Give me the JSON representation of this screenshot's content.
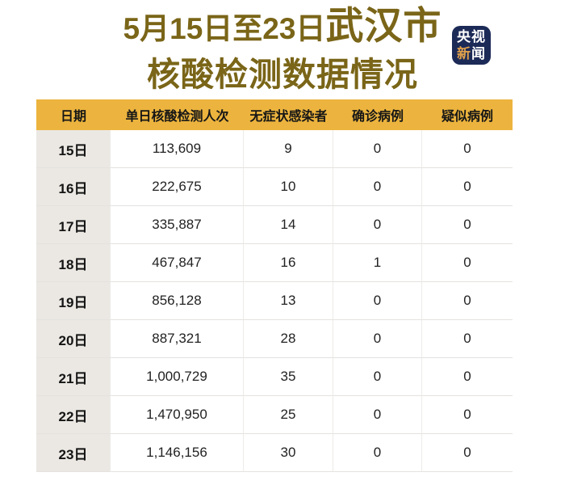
{
  "title": {
    "line1_prefix": "5月15日至23日",
    "line1_emphasis": "武汉市",
    "line2": "核酸检测数据情况"
  },
  "badge": {
    "name": "央视新闻",
    "line1": "央视",
    "line2_char1": "新",
    "line2_char2": "闻"
  },
  "colors": {
    "title_text": "#7a6518",
    "header_bg": "#ecb43e",
    "date_column_bg": "#ebe8e3",
    "badge_bg": "#1c2a57",
    "badge_accent": "#dd9f4b",
    "page_bg": "#ffffff"
  },
  "table": {
    "columns": [
      "日期",
      "单日核酸检测人次",
      "无症状感染者",
      "确诊病例",
      "疑似病例"
    ],
    "rows": [
      {
        "date": "15日",
        "tests": "113,609",
        "asymptomatic": "9",
        "confirmed": "0",
        "suspected": "0"
      },
      {
        "date": "16日",
        "tests": "222,675",
        "asymptomatic": "10",
        "confirmed": "0",
        "suspected": "0"
      },
      {
        "date": "17日",
        "tests": "335,887",
        "asymptomatic": "14",
        "confirmed": "0",
        "suspected": "0"
      },
      {
        "date": "18日",
        "tests": "467,847",
        "asymptomatic": "16",
        "confirmed": "1",
        "suspected": "0"
      },
      {
        "date": "19日",
        "tests": "856,128",
        "asymptomatic": "13",
        "confirmed": "0",
        "suspected": "0"
      },
      {
        "date": "20日",
        "tests": "887,321",
        "asymptomatic": "28",
        "confirmed": "0",
        "suspected": "0"
      },
      {
        "date": "21日",
        "tests": "1,000,729",
        "asymptomatic": "35",
        "confirmed": "0",
        "suspected": "0"
      },
      {
        "date": "22日",
        "tests": "1,470,950",
        "asymptomatic": "25",
        "confirmed": "0",
        "suspected": "0"
      },
      {
        "date": "23日",
        "tests": "1,146,156",
        "asymptomatic": "30",
        "confirmed": "0",
        "suspected": "0"
      }
    ]
  },
  "chart_data": {
    "type": "table",
    "title": "5月15日至23日武汉市核酸检测数据情况",
    "source_badge": "央视新闻",
    "columns": [
      "日期",
      "单日核酸检测人次",
      "无症状感染者",
      "确诊病例",
      "疑似病例"
    ],
    "rows": [
      [
        "15日",
        113609,
        9,
        0,
        0
      ],
      [
        "16日",
        222675,
        10,
        0,
        0
      ],
      [
        "17日",
        335887,
        14,
        0,
        0
      ],
      [
        "18日",
        467847,
        16,
        1,
        0
      ],
      [
        "19日",
        856128,
        13,
        0,
        0
      ],
      [
        "20日",
        887321,
        28,
        0,
        0
      ],
      [
        "21日",
        1000729,
        35,
        0,
        0
      ],
      [
        "22日",
        1470950,
        25,
        0,
        0
      ],
      [
        "23日",
        1146156,
        30,
        0,
        0
      ]
    ]
  }
}
